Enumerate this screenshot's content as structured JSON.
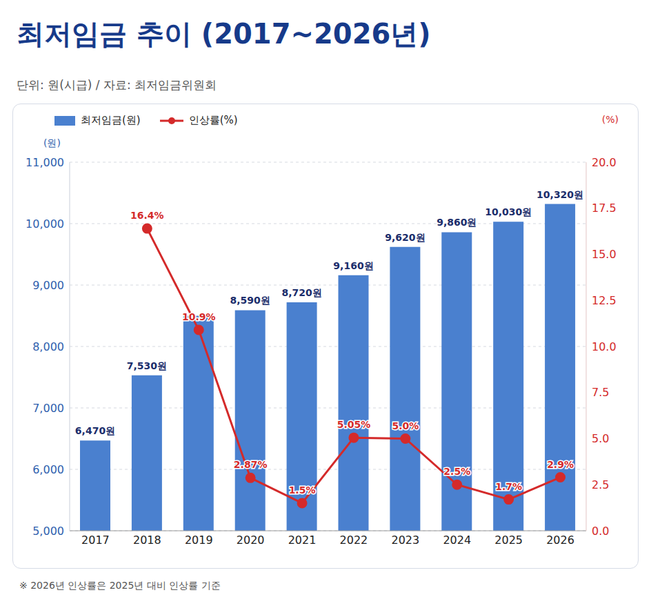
{
  "chart_data": {
    "type": "bar",
    "title": "최저임금 추이 (2017~2026년)",
    "subtitle": "단위: 원(시급) / 자료: 최저임금위원회",
    "annotations": [
      "※ 2026년 인상률은 2025년 대비 인상률 기준"
    ],
    "categories": [
      "2017",
      "2018",
      "2019",
      "2020",
      "2021",
      "2022",
      "2023",
      "2024",
      "2025",
      "2026"
    ],
    "series": [
      {
        "name": "최저임금(원)",
        "type": "bar",
        "color": "#4a80cf",
        "values": [
          6470,
          7530,
          8500,
          8590,
          8720,
          9160,
          9620,
          9860,
          10030,
          10320
        ],
        "value_labels": [
          "6,470원",
          "7,530원",
          null,
          "8,590원",
          "8,720원",
          "9,160원",
          "9,620원",
          "9,860원",
          "10,030원",
          "10,320원"
        ]
      },
      {
        "name": "인상률(%)",
        "type": "line",
        "axis": "y2",
        "color": "#d42a2a",
        "marker": "circle",
        "values": [
          null,
          16.4,
          10.9,
          2.87,
          1.5,
          5.05,
          5.0,
          2.5,
          1.7,
          2.9
        ],
        "value_labels": [
          null,
          "16.4%",
          "10.9%",
          "2.87%",
          "1.5%",
          "5.05%",
          "5.0%",
          "2.5%",
          "1.7%",
          "2.9%"
        ]
      }
    ],
    "ylabel": "(원)",
    "y2label": "(%)",
    "ylim": [
      5000,
      11000
    ],
    "yticks": [
      {
        "value": 5000,
        "label": "5,000"
      },
      {
        "value": 6000,
        "label": "6,000"
      },
      {
        "value": 7000,
        "label": "7,000"
      },
      {
        "value": 8000,
        "label": "8,000"
      },
      {
        "value": 9000,
        "label": "9,000"
      },
      {
        "value": 10000,
        "label": "10,000"
      },
      {
        "value": 11000,
        "label": "11,000"
      }
    ],
    "y2lim": [
      0,
      20
    ],
    "y2ticks": [
      {
        "value": 0,
        "label": "0.0"
      },
      2.5,
      {
        "value": 5,
        "label": "5.0"
      },
      7.5,
      {
        "value": 10,
        "label": "10.0"
      },
      12.5,
      {
        "value": 15,
        "label": "15.0"
      },
      17.5,
      {
        "value": 20,
        "label": "20.0"
      }
    ],
    "grid": true,
    "legend": "top-left",
    "data_labels": true
  }
}
